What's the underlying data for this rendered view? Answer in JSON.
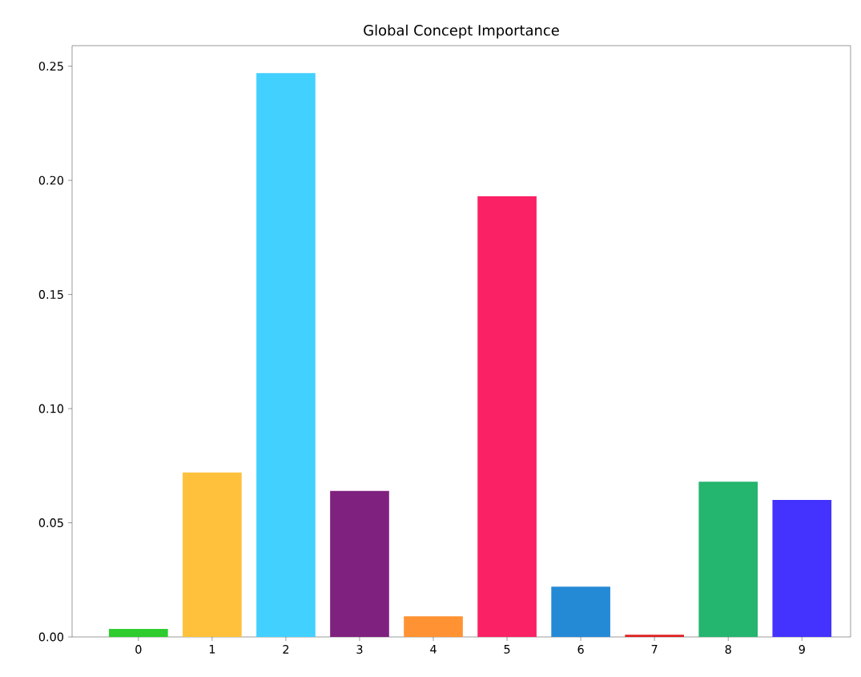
{
  "chart_data": {
    "type": "bar",
    "title": "Global Concept Importance",
    "categories": [
      "0",
      "1",
      "2",
      "3",
      "4",
      "5",
      "6",
      "7",
      "8",
      "9"
    ],
    "values": [
      0.0035,
      0.072,
      0.247,
      0.064,
      0.009,
      0.193,
      0.022,
      0.001,
      0.068,
      0.06
    ],
    "colors": [
      "#2ecc2e",
      "#ffc13b",
      "#42d0ff",
      "#7f217f",
      "#ff9232",
      "#fa2165",
      "#248ad6",
      "#e02020",
      "#24b56e",
      "#4433ff"
    ],
    "ylim": [
      0,
      0.259
    ],
    "yticks": [
      {
        "value": 0,
        "label": "0.00"
      },
      {
        "value": 0.05,
        "label": "0.05"
      },
      {
        "value": 0.1,
        "label": "0.10"
      },
      {
        "value": 0.15,
        "label": "0.15"
      },
      {
        "value": 0.2,
        "label": "0.20"
      },
      {
        "value": 0.25,
        "label": "0.25"
      }
    ],
    "grid": false
  }
}
